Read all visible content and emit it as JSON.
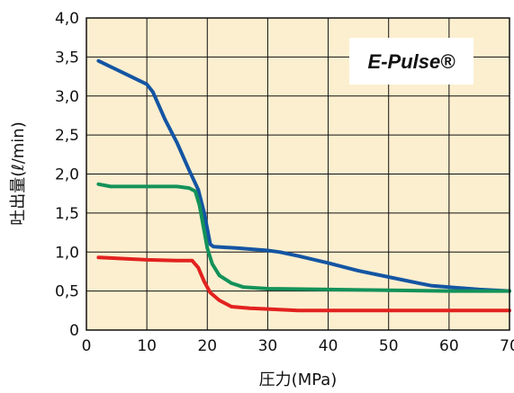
{
  "chart_data": {
    "type": "line",
    "xlabel": "圧力(MPa)",
    "ylabel": "吐出量(ℓ/min)",
    "xlim": [
      0,
      70
    ],
    "ylim": [
      0,
      4
    ],
    "x_ticks": [
      "0",
      "10",
      "20",
      "30",
      "40",
      "50",
      "60",
      "70"
    ],
    "y_ticks": [
      "0",
      "0,5",
      "1,0",
      "1,5",
      "2,0",
      "2,5",
      "3,0",
      "3,5",
      "4,0"
    ],
    "grid": true,
    "plot_background": "#fcefcf",
    "annotation": "E-Pulse®",
    "series": [
      {
        "color": "#1455a3",
        "points": [
          [
            2,
            3.45
          ],
          [
            6,
            3.3
          ],
          [
            10,
            3.15
          ],
          [
            11,
            3.05
          ],
          [
            13,
            2.7
          ],
          [
            15,
            2.4
          ],
          [
            17,
            2.05
          ],
          [
            18.5,
            1.8
          ],
          [
            19.5,
            1.5
          ],
          [
            20.5,
            1.1
          ],
          [
            21,
            1.07
          ],
          [
            25,
            1.05
          ],
          [
            30,
            1.02
          ],
          [
            32,
            1.0
          ],
          [
            35,
            0.95
          ],
          [
            40,
            0.86
          ],
          [
            45,
            0.76
          ],
          [
            50,
            0.68
          ],
          [
            55,
            0.6
          ],
          [
            57,
            0.57
          ],
          [
            60,
            0.55
          ],
          [
            65,
            0.52
          ],
          [
            70,
            0.5
          ]
        ]
      },
      {
        "color": "#13925a",
        "points": [
          [
            2,
            1.87
          ],
          [
            4,
            1.84
          ],
          [
            10,
            1.84
          ],
          [
            15,
            1.84
          ],
          [
            17,
            1.82
          ],
          [
            18,
            1.78
          ],
          [
            18.7,
            1.6
          ],
          [
            19.3,
            1.35
          ],
          [
            20,
            1.05
          ],
          [
            20.8,
            0.85
          ],
          [
            22,
            0.7
          ],
          [
            24,
            0.6
          ],
          [
            26,
            0.55
          ],
          [
            30,
            0.53
          ],
          [
            40,
            0.52
          ],
          [
            50,
            0.51
          ],
          [
            60,
            0.5
          ],
          [
            70,
            0.5
          ]
        ]
      },
      {
        "color": "#e2221f",
        "points": [
          [
            2,
            0.93
          ],
          [
            5,
            0.92
          ],
          [
            10,
            0.9
          ],
          [
            15,
            0.89
          ],
          [
            17.5,
            0.89
          ],
          [
            18.5,
            0.8
          ],
          [
            19.5,
            0.62
          ],
          [
            20.5,
            0.48
          ],
          [
            22,
            0.38
          ],
          [
            24,
            0.3
          ],
          [
            27,
            0.28
          ],
          [
            30,
            0.27
          ],
          [
            35,
            0.25
          ],
          [
            40,
            0.25
          ],
          [
            50,
            0.25
          ],
          [
            60,
            0.25
          ],
          [
            70,
            0.25
          ]
        ]
      }
    ]
  }
}
